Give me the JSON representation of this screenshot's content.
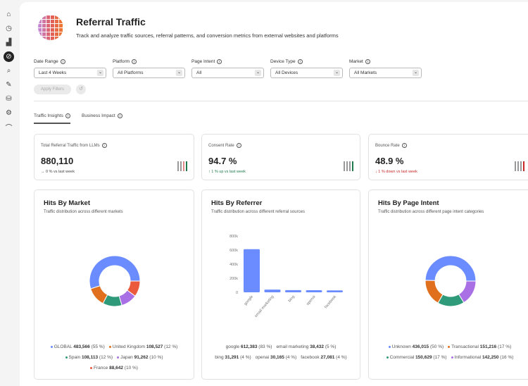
{
  "sidebar": {
    "items": [
      {
        "icon": "home-icon",
        "g": "⌂"
      },
      {
        "icon": "compass-icon",
        "g": "◷"
      },
      {
        "icon": "bar-chart-icon",
        "g": "▟"
      },
      {
        "icon": "referral-icon",
        "g": "⊘",
        "active": true
      },
      {
        "icon": "search-icon",
        "g": "⌕"
      },
      {
        "icon": "magic-wand-icon",
        "g": "✎"
      },
      {
        "icon": "database-settings-icon",
        "g": "⛁"
      },
      {
        "icon": "settings-icon",
        "g": "⚙"
      },
      {
        "icon": "learn-icon",
        "g": "⌒"
      }
    ]
  },
  "header": {
    "title": "Referral Traffic",
    "subtitle": "Track and analyze traffic sources, referral patterns, and conversion metrics from external websites and platforms"
  },
  "filters": [
    {
      "label": "Date Range",
      "value": "Last 4 Weeks"
    },
    {
      "label": "Platform",
      "value": "All Platforms"
    },
    {
      "label": "Page Intent",
      "value": "All"
    },
    {
      "label": "Device Type",
      "value": "All Devices"
    },
    {
      "label": "Market",
      "value": "All Markets"
    }
  ],
  "apply_label": "Apply Filters",
  "tabs": [
    {
      "label": "Traffic Insights",
      "active": true
    },
    {
      "label": "Business Impact"
    }
  ],
  "kpis": [
    {
      "title": "Total Referral Traffic from LLMs",
      "value": "880,110",
      "delta": "→ 0 % vs last week",
      "delta_color": "#444",
      "bars": [
        "#999",
        "#999",
        "#e08a8a",
        "#1f7a4d"
      ]
    },
    {
      "title": "Consent Rate",
      "value": "94.7 %",
      "delta": "↑ 1 % up vs last week",
      "delta_color": "#1f7a4d",
      "bars": [
        "#999",
        "#999",
        "#999",
        "#1f7a4d"
      ]
    },
    {
      "title": "Bounce Rate",
      "value": "48.9 %",
      "delta": "↓ 1 % down vs last week",
      "delta_color": "#c62828",
      "bars": [
        "#999",
        "#999",
        "#999",
        "#c62828"
      ]
    }
  ],
  "colors": {
    "blue": "#6b8cff",
    "orange": "#e0701e",
    "green": "#2e9a7a",
    "purple": "#a970e6",
    "red": "#ec5a3e"
  },
  "chart_data": [
    {
      "type": "pie",
      "title": "Hits By Market",
      "subtitle": "Traffic distribution across different markets",
      "slices": [
        {
          "label": "GLOBAL",
          "value": 483566,
          "pct": "55 %",
          "color": "#6b8cff"
        },
        {
          "label": "United Kingdom",
          "value": 108527,
          "pct": "12 %",
          "color": "#e0701e"
        },
        {
          "label": "Spain",
          "value": 108113,
          "pct": "12 %",
          "color": "#2e9a7a"
        },
        {
          "label": "Japan",
          "value": 91262,
          "pct": "10 %",
          "color": "#a970e6"
        },
        {
          "label": "France",
          "value": 88642,
          "pct": "10 %",
          "color": "#ec5a3e"
        }
      ],
      "display": [
        "483,566",
        "108,527",
        "108,113",
        "91,262",
        "88,642"
      ]
    },
    {
      "type": "bar",
      "title": "Hits By Referrer",
      "subtitle": "Traffic distribution across different referral sources",
      "categories": [
        "google",
        "email marketing",
        "bing",
        "openai",
        "facebook"
      ],
      "values": [
        612383,
        38432,
        31291,
        30165,
        27081
      ],
      "pct": [
        "83 %",
        "5 %",
        "4 %",
        "4 %",
        "4 %"
      ],
      "display": [
        "612,383",
        "38,432",
        "31,291",
        "30,165",
        "27,081"
      ],
      "yticks": [
        "0",
        "200k",
        "400k",
        "600k",
        "800k"
      ],
      "ylim": [
        0,
        800000
      ],
      "color": "#6b8cff"
    },
    {
      "type": "pie",
      "title": "Hits By Page Intent",
      "subtitle": "Traffic distribution across different page intent categories",
      "slices": [
        {
          "label": "Unknown",
          "value": 436015,
          "pct": "50 %",
          "color": "#6b8cff"
        },
        {
          "label": "Transactional",
          "value": 151216,
          "pct": "17 %",
          "color": "#e0701e"
        },
        {
          "label": "Commercial",
          "value": 150629,
          "pct": "17 %",
          "color": "#2e9a7a"
        },
        {
          "label": "Informational",
          "value": 142250,
          "pct": "16 %",
          "color": "#a970e6"
        }
      ],
      "display": [
        "436,015",
        "151,216",
        "150,629",
        "142,250"
      ]
    }
  ]
}
